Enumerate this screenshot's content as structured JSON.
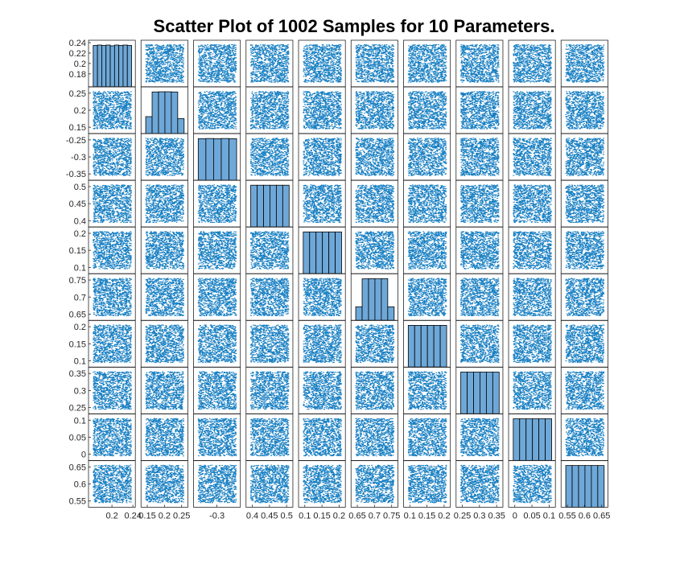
{
  "title": "Scatter Plot of 1002 Samples for 10 Parameters.",
  "colors": {
    "background": "#ffffff",
    "marker": "#0072bd",
    "bar_fill": "#6ea8d8",
    "axis": "#262626",
    "title": "#000000"
  },
  "chart_data": {
    "type": "scatter",
    "subtype": "scatter-matrix",
    "title": "Scatter Plot of 1002 Samples for 10 Parameters.",
    "n_samples": 1002,
    "n_parameters": 10,
    "diagonal": "histogram",
    "off_diagonal": "scatter",
    "marker": "point",
    "grid": false,
    "legend": "none",
    "parameters": [
      {
        "range": [
          0.164,
          0.236
        ],
        "hist_bins": 9,
        "hist_counts": [
          111,
          112,
          111,
          112,
          110,
          112,
          111,
          112,
          111
        ],
        "ticks": [
          0.18,
          0.2,
          0.22,
          0.24
        ],
        "tick_labels": [
          "0.18",
          "0.2",
          "0.22",
          "0.24"
        ],
        "bottom_ticks": [
          0.2,
          0.24
        ],
        "bottom_tick_labels": [
          "0.2",
          "0.24"
        ]
      },
      {
        "range": [
          0.145,
          0.255
        ],
        "hist_bins": 6,
        "hist_counts": [
          85,
          210,
          211,
          211,
          210,
          75
        ],
        "ticks": [
          0.15,
          0.2,
          0.25
        ],
        "tick_labels": [
          "0.15",
          "0.2",
          "0.25"
        ],
        "bottom_ticks": [
          0.15,
          0.2,
          0.25
        ],
        "bottom_tick_labels": [
          "0.15",
          "0.2",
          "0.25"
        ]
      },
      {
        "range": [
          -0.355,
          -0.245
        ],
        "hist_bins": 5,
        "hist_counts": [
          200,
          201,
          200,
          201,
          200
        ],
        "ticks": [
          -0.35,
          -0.3,
          -0.25
        ],
        "tick_labels": [
          "-0.35",
          "-0.3",
          "-0.25"
        ],
        "bottom_ticks": [
          -0.3
        ],
        "bottom_tick_labels": [
          "-0.3"
        ]
      },
      {
        "range": [
          0.395,
          0.505
        ],
        "hist_bins": 6,
        "hist_counts": [
          167,
          167,
          167,
          167,
          167,
          167
        ],
        "ticks": [
          0.4,
          0.45,
          0.5
        ],
        "tick_labels": [
          "0.4",
          "0.45",
          "0.5"
        ],
        "bottom_ticks": [
          0.4,
          0.45,
          0.5
        ],
        "bottom_tick_labels": [
          "0.4",
          "0.45",
          "0.5"
        ]
      },
      {
        "range": [
          0.095,
          0.205
        ],
        "hist_bins": 6,
        "hist_counts": [
          167,
          167,
          167,
          167,
          167,
          167
        ],
        "ticks": [
          0.1,
          0.15,
          0.2
        ],
        "tick_labels": [
          "0.1",
          "0.15",
          "0.2"
        ],
        "bottom_ticks": [
          0.1,
          0.15,
          0.2
        ],
        "bottom_tick_labels": [
          "0.1",
          "0.15",
          "0.2"
        ]
      },
      {
        "range": [
          0.645,
          0.755
        ],
        "hist_bins": 6,
        "hist_counts": [
          70,
          215,
          216,
          215,
          216,
          70
        ],
        "ticks": [
          0.65,
          0.7,
          0.75
        ],
        "tick_labels": [
          "0.65",
          "0.7",
          "0.75"
        ],
        "bottom_ticks": [
          0.65,
          0.7,
          0.75
        ],
        "bottom_tick_labels": [
          "0.65",
          "0.7",
          "0.75"
        ]
      },
      {
        "range": [
          0.095,
          0.205
        ],
        "hist_bins": 6,
        "hist_counts": [
          167,
          167,
          167,
          167,
          167,
          167
        ],
        "ticks": [
          0.1,
          0.15,
          0.2
        ],
        "tick_labels": [
          "0.1",
          "0.15",
          "0.2"
        ],
        "bottom_ticks": [
          0.1,
          0.15,
          0.2
        ],
        "bottom_tick_labels": [
          "0.1",
          "0.15",
          "0.2"
        ]
      },
      {
        "range": [
          0.245,
          0.355
        ],
        "hist_bins": 6,
        "hist_counts": [
          167,
          167,
          167,
          167,
          167,
          167
        ],
        "ticks": [
          0.25,
          0.3,
          0.35
        ],
        "tick_labels": [
          "0.25",
          "0.3",
          "0.35"
        ],
        "bottom_ticks": [
          0.25,
          0.3,
          0.35
        ],
        "bottom_tick_labels": [
          "0.25",
          "0.3",
          "0.35"
        ]
      },
      {
        "range": [
          -0.005,
          0.105
        ],
        "hist_bins": 6,
        "hist_counts": [
          167,
          167,
          167,
          167,
          167,
          167
        ],
        "ticks": [
          0,
          0.05,
          0.1
        ],
        "tick_labels": [
          "0",
          "0.05",
          "0.1"
        ],
        "bottom_ticks": [
          0,
          0.05,
          0.1
        ],
        "bottom_tick_labels": [
          "0",
          "0.05",
          "0.1"
        ]
      },
      {
        "range": [
          0.545,
          0.655
        ],
        "hist_bins": 6,
        "hist_counts": [
          167,
          167,
          167,
          167,
          167,
          167
        ],
        "ticks": [
          0.55,
          0.6,
          0.65
        ],
        "tick_labels": [
          "0.55",
          "0.6",
          "0.65"
        ],
        "bottom_ticks": [
          0.55,
          0.6,
          0.65
        ],
        "bottom_tick_labels": [
          "0.55",
          "0.6",
          "0.65"
        ]
      }
    ]
  }
}
